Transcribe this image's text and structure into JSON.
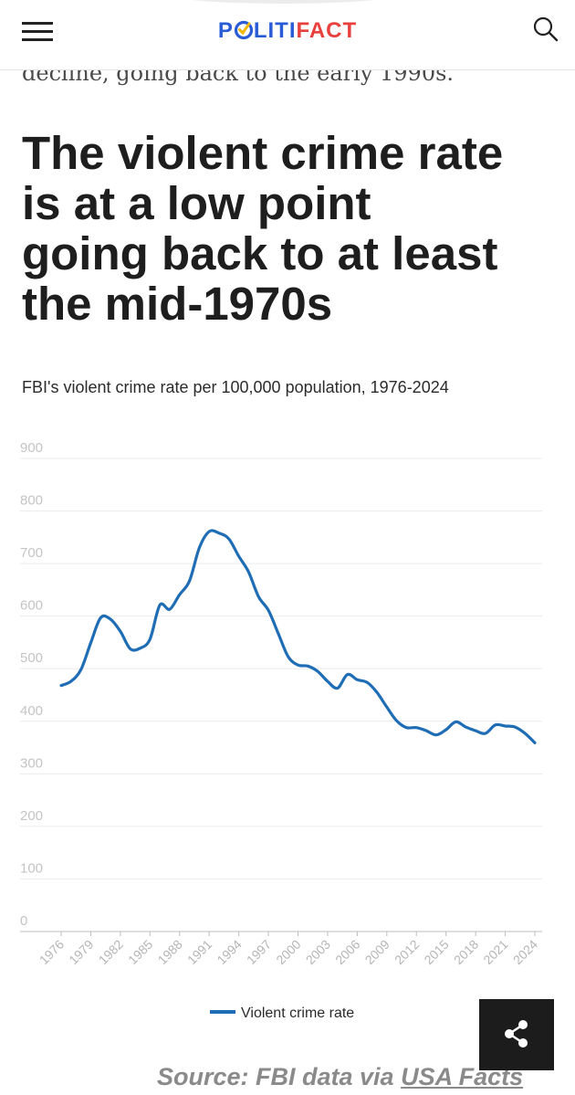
{
  "header": {
    "logo_part1": "P",
    "logo_part2": "LITI",
    "logo_part3": "FACT",
    "menu_icon": "hamburger-icon",
    "search_icon": "search-icon"
  },
  "article": {
    "lead_text": "decline, going back to the early 1990s.",
    "headline_lines": [
      "The violent crime rate",
      "is at a low point",
      "going back to at least",
      "the mid-1970s"
    ],
    "chart_subtitle": "FBI's violent crime rate per 100,000 population, 1976-2024"
  },
  "chart_data": {
    "type": "line",
    "title": "FBI's violent crime rate per 100,000 population, 1976-2024",
    "xlabel": "",
    "ylabel": "",
    "ylim": [
      0,
      900
    ],
    "yticks": [
      "0",
      "100",
      "200",
      "300",
      "400",
      "500",
      "600",
      "700",
      "800",
      "900"
    ],
    "xticks": [
      "1976",
      "1979",
      "1982",
      "1985",
      "1988",
      "1991",
      "1994",
      "1997",
      "2000",
      "2003",
      "2006",
      "2009",
      "2012",
      "2015",
      "2018",
      "2021",
      "2024"
    ],
    "grid": true,
    "legend_position": "bottom",
    "series": [
      {
        "name": "Violent crime rate",
        "color": "#1f6db5",
        "x": [
          1976,
          1977,
          1978,
          1979,
          1980,
          1981,
          1982,
          1983,
          1984,
          1985,
          1986,
          1987,
          1988,
          1989,
          1990,
          1991,
          1992,
          1993,
          1994,
          1995,
          1996,
          1997,
          1998,
          1999,
          2000,
          2001,
          2002,
          2003,
          2004,
          2005,
          2006,
          2007,
          2008,
          2009,
          2010,
          2011,
          2012,
          2013,
          2014,
          2015,
          2016,
          2017,
          2018,
          2019,
          2020,
          2021,
          2022,
          2023,
          2024
        ],
        "values": [
          468,
          476,
          498,
          549,
          597,
          594,
          571,
          538,
          539,
          556,
          621,
          613,
          641,
          667,
          730,
          761,
          758,
          747,
          714,
          684,
          637,
          611,
          567,
          523,
          507,
          505,
          495,
          476,
          463,
          489,
          479,
          474,
          455,
          427,
          401,
          388,
          388,
          382,
          374,
          384,
          399,
          389,
          382,
          377,
          393,
          391,
          389,
          377,
          359
        ]
      }
    ]
  },
  "legend": {
    "label": "Violent crime rate"
  },
  "share": {
    "icon": "share-icon"
  },
  "source": {
    "prefix": "Source: FBI data via ",
    "link": "USA Facts"
  }
}
